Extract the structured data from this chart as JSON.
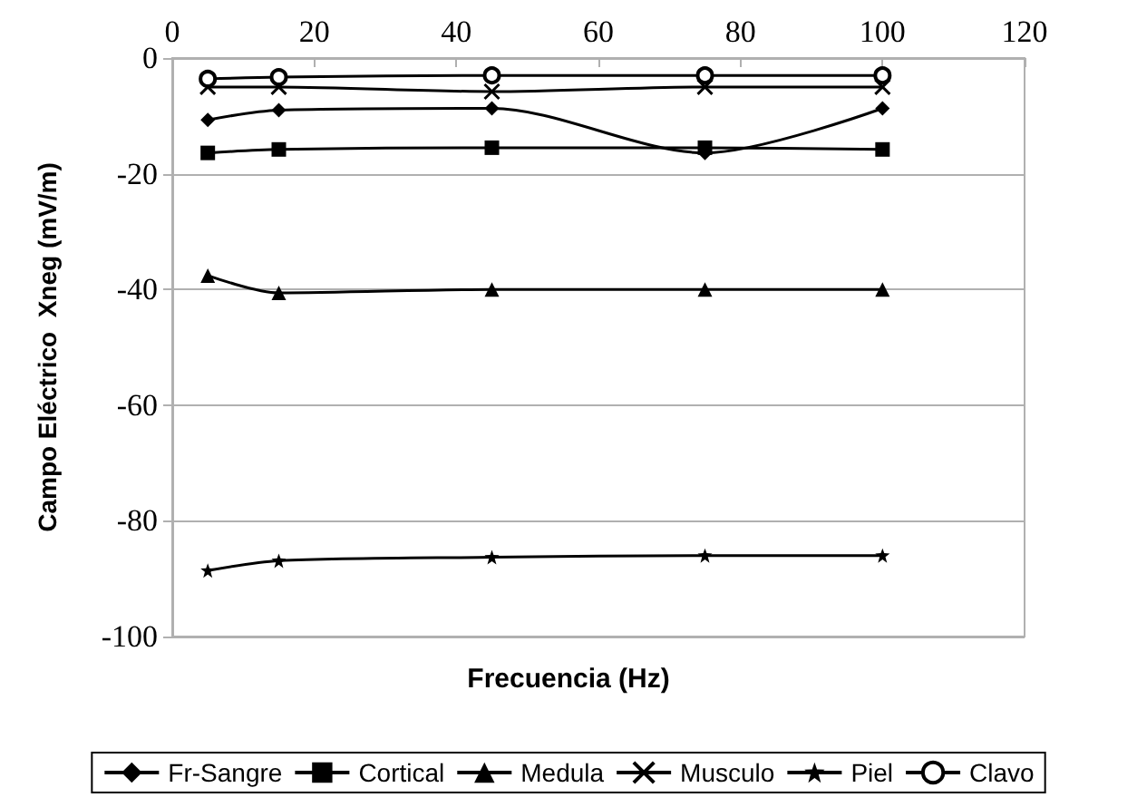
{
  "chart_data": {
    "type": "line",
    "xlabel": "Frecuencia (Hz)",
    "ylabel": "Campo Eléctrico  Xneg (mV/m)",
    "x": [
      5,
      15,
      45,
      75,
      100
    ],
    "xlim": [
      0,
      120
    ],
    "xticks": [
      0,
      20,
      40,
      60,
      80,
      100,
      120
    ],
    "ylim": [
      -100,
      0
    ],
    "yticks": [
      -100,
      -80,
      -60,
      -40,
      -20,
      0
    ],
    "grid": "y",
    "legend": "bottom",
    "series": [
      {
        "name": "Fr-Sangre",
        "color": "#000000",
        "marker": "diamond",
        "values": [
          -10.7,
          -9,
          -8.7,
          -16.4,
          -8.7
        ]
      },
      {
        "name": "Cortical",
        "color": "#000000",
        "marker": "square",
        "values": [
          -16.4,
          -15.8,
          -15.5,
          -15.5,
          -15.8
        ]
      },
      {
        "name": "Medula",
        "color": "#000000",
        "marker": "triangle",
        "values": [
          -37.6,
          -40.6,
          -40,
          -40,
          -40
        ]
      },
      {
        "name": "Musculo",
        "color": "#000000",
        "marker": "cross",
        "values": [
          -5,
          -5,
          -5.8,
          -5,
          -5
        ]
      },
      {
        "name": "Piel",
        "color": "#000000",
        "marker": "star",
        "values": [
          -88.6,
          -86.9,
          -86.3,
          -86,
          -86
        ]
      },
      {
        "name": "Clavo",
        "color": "#000000",
        "marker": "circle",
        "values": [
          -3.6,
          -3.3,
          -3,
          -3,
          -3
        ]
      }
    ]
  }
}
